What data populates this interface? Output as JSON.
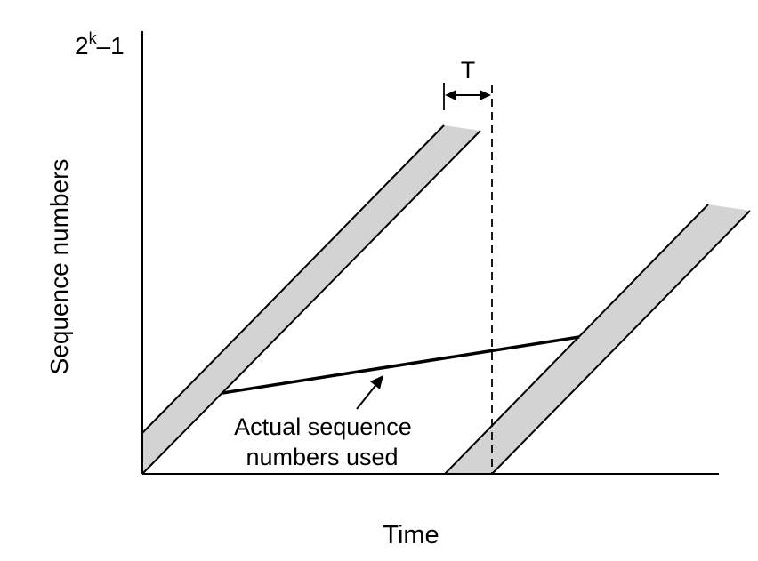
{
  "diagram": {
    "y_axis_label": "Sequence numbers",
    "y_max_label": {
      "base": "2",
      "exponent": "k",
      "suffix": "–1"
    },
    "x_axis_label": "Time",
    "interval_label": "T",
    "annotation": {
      "line1": "Actual sequence",
      "line2": "numbers used"
    },
    "colors": {
      "band": "#d3d3d3",
      "ink": "#000000"
    }
  }
}
